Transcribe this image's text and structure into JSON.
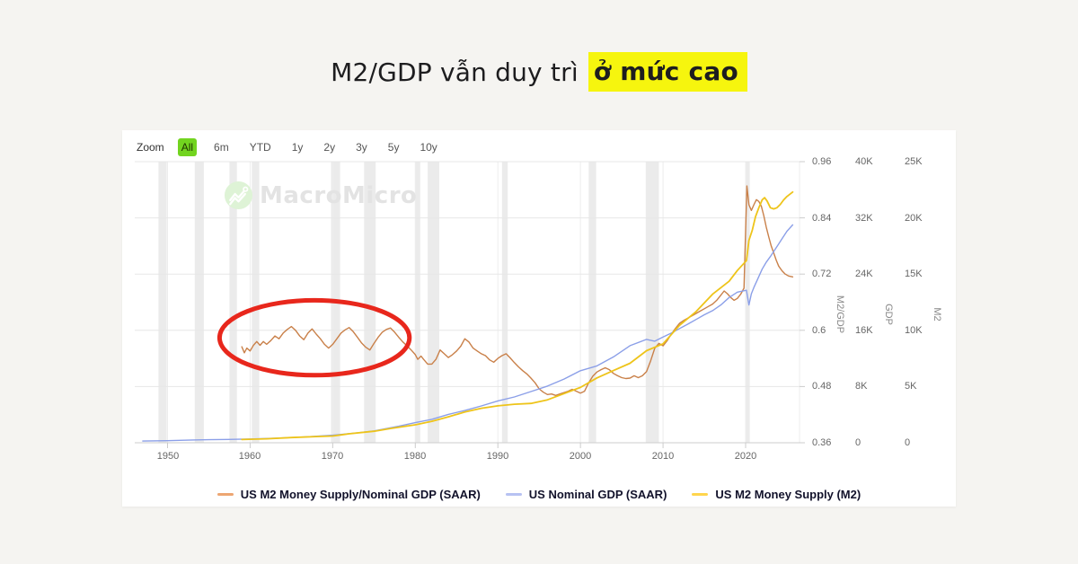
{
  "page": {
    "background": "#f5f4f1"
  },
  "title": {
    "prefix": "M2/GDP vẫn duy trì ",
    "highlight": "ở mức cao",
    "highlight_bg": "#f6f50e"
  },
  "toolbar": {
    "label": "Zoom",
    "active_bg": "#72d41f",
    "buttons": [
      {
        "label": "All",
        "active": true
      },
      {
        "label": "6m",
        "active": false
      },
      {
        "label": "YTD",
        "active": false
      },
      {
        "label": "1y",
        "active": false
      },
      {
        "label": "2y",
        "active": false
      },
      {
        "label": "3y",
        "active": false
      },
      {
        "label": "5y",
        "active": false
      },
      {
        "label": "10y",
        "active": false
      }
    ]
  },
  "watermark": {
    "text": "MacroMicro"
  },
  "chart_data": {
    "type": "line",
    "x_ticks": [
      1950,
      1960,
      1970,
      1980,
      1990,
      2000,
      2010,
      2020
    ],
    "x_range": [
      1946.9,
      2025.9
    ],
    "grid": true,
    "legend_position": "bottom",
    "yaxes": [
      {
        "title": "M2/GDP",
        "min": 0.36,
        "max": 0.96,
        "tick_values": [
          0.36,
          0.48,
          0.6,
          0.72,
          0.84,
          0.96
        ],
        "tick_labels": [
          "0.36",
          "0.48",
          "0.6",
          "0.72",
          "0.84",
          "0.96"
        ]
      },
      {
        "title": "GDP",
        "min": 0,
        "max": 40,
        "tick_values": [
          0,
          8,
          16,
          24,
          32,
          40
        ],
        "tick_labels": [
          "0",
          "8K",
          "16K",
          "24K",
          "32K",
          "40K"
        ]
      },
      {
        "title": "M2",
        "min": 0,
        "max": 25,
        "tick_values": [
          0,
          5,
          10,
          15,
          20,
          25
        ],
        "tick_labels": [
          "0",
          "5K",
          "10K",
          "15K",
          "20K",
          "25K"
        ]
      }
    ],
    "recession_bands": [
      [
        1948.9,
        1949.9
      ],
      [
        1953.3,
        1954.4
      ],
      [
        1957.5,
        1958.4
      ],
      [
        1960.2,
        1961.1
      ],
      [
        1969.8,
        1970.9
      ],
      [
        1973.8,
        1975.2
      ],
      [
        1980.0,
        1980.6
      ],
      [
        1981.5,
        1982.9
      ],
      [
        1990.5,
        1991.2
      ],
      [
        2001.0,
        2001.9
      ],
      [
        2007.9,
        2009.5
      ],
      [
        2020.0,
        2020.5
      ]
    ],
    "series": [
      {
        "name": "US M2 Money Supply/Nominal GDP (SAAR)",
        "color": "#c98049",
        "legend_color": "#eda672",
        "axis": 0,
        "width": 1.4,
        "data": [
          [
            1959,
            0.565
          ],
          [
            1959.3,
            0.552
          ],
          [
            1959.6,
            0.562
          ],
          [
            1960,
            0.556
          ],
          [
            1960.4,
            0.568
          ],
          [
            1960.8,
            0.576
          ],
          [
            1961.2,
            0.568
          ],
          [
            1961.6,
            0.576
          ],
          [
            1962,
            0.57
          ],
          [
            1962.5,
            0.578
          ],
          [
            1963,
            0.588
          ],
          [
            1963.5,
            0.582
          ],
          [
            1964,
            0.594
          ],
          [
            1964.5,
            0.602
          ],
          [
            1965,
            0.608
          ],
          [
            1965.5,
            0.6
          ],
          [
            1966,
            0.588
          ],
          [
            1966.5,
            0.58
          ],
          [
            1967,
            0.594
          ],
          [
            1967.5,
            0.603
          ],
          [
            1968,
            0.592
          ],
          [
            1968.5,
            0.582
          ],
          [
            1969,
            0.57
          ],
          [
            1969.5,
            0.562
          ],
          [
            1970,
            0.57
          ],
          [
            1970.5,
            0.582
          ],
          [
            1971,
            0.594
          ],
          [
            1971.5,
            0.601
          ],
          [
            1972,
            0.606
          ],
          [
            1972.5,
            0.597
          ],
          [
            1973,
            0.585
          ],
          [
            1973.5,
            0.573
          ],
          [
            1974,
            0.564
          ],
          [
            1974.5,
            0.558
          ],
          [
            1975,
            0.572
          ],
          [
            1975.5,
            0.585
          ],
          [
            1976,
            0.596
          ],
          [
            1976.5,
            0.602
          ],
          [
            1977,
            0.605
          ],
          [
            1977.5,
            0.596
          ],
          [
            1978,
            0.585
          ],
          [
            1978.5,
            0.575
          ],
          [
            1979,
            0.567
          ],
          [
            1979.5,
            0.558
          ],
          [
            1980,
            0.548
          ],
          [
            1980.3,
            0.538
          ],
          [
            1980.7,
            0.545
          ],
          [
            1981,
            0.538
          ],
          [
            1981.5,
            0.528
          ],
          [
            1982,
            0.528
          ],
          [
            1982.5,
            0.538
          ],
          [
            1983,
            0.558
          ],
          [
            1983.5,
            0.55
          ],
          [
            1984,
            0.542
          ],
          [
            1984.5,
            0.548
          ],
          [
            1985,
            0.556
          ],
          [
            1985.5,
            0.566
          ],
          [
            1986,
            0.582
          ],
          [
            1986.5,
            0.575
          ],
          [
            1987,
            0.562
          ],
          [
            1987.5,
            0.556
          ],
          [
            1988,
            0.55
          ],
          [
            1988.5,
            0.546
          ],
          [
            1989,
            0.537
          ],
          [
            1989.5,
            0.532
          ],
          [
            1990,
            0.54
          ],
          [
            1990.5,
            0.546
          ],
          [
            1991,
            0.55
          ],
          [
            1991.5,
            0.541
          ],
          [
            1992,
            0.531
          ],
          [
            1992.5,
            0.522
          ],
          [
            1993,
            0.514
          ],
          [
            1993.5,
            0.507
          ],
          [
            1994,
            0.498
          ],
          [
            1994.5,
            0.488
          ],
          [
            1995,
            0.475
          ],
          [
            1995.5,
            0.468
          ],
          [
            1996,
            0.463
          ],
          [
            1996.5,
            0.464
          ],
          [
            1997,
            0.461
          ],
          [
            1997.5,
            0.464
          ],
          [
            1998,
            0.467
          ],
          [
            1998.5,
            0.47
          ],
          [
            1999,
            0.474
          ],
          [
            1999.5,
            0.47
          ],
          [
            2000,
            0.466
          ],
          [
            2000.5,
            0.47
          ],
          [
            2001,
            0.488
          ],
          [
            2001.5,
            0.502
          ],
          [
            2002,
            0.511
          ],
          [
            2002.5,
            0.516
          ],
          [
            2003,
            0.52
          ],
          [
            2003.5,
            0.516
          ],
          [
            2004,
            0.508
          ],
          [
            2004.5,
            0.503
          ],
          [
            2005,
            0.499
          ],
          [
            2005.5,
            0.497
          ],
          [
            2006,
            0.498
          ],
          [
            2006.5,
            0.503
          ],
          [
            2007,
            0.499
          ],
          [
            2007.5,
            0.503
          ],
          [
            2008,
            0.512
          ],
          [
            2008.5,
            0.535
          ],
          [
            2009,
            0.562
          ],
          [
            2009.5,
            0.572
          ],
          [
            2010,
            0.567
          ],
          [
            2010.5,
            0.578
          ],
          [
            2011,
            0.592
          ],
          [
            2011.5,
            0.604
          ],
          [
            2012,
            0.615
          ],
          [
            2012.5,
            0.621
          ],
          [
            2013,
            0.626
          ],
          [
            2013.5,
            0.631
          ],
          [
            2014,
            0.636
          ],
          [
            2014.5,
            0.641
          ],
          [
            2015,
            0.646
          ],
          [
            2015.5,
            0.651
          ],
          [
            2016,
            0.656
          ],
          [
            2016.5,
            0.664
          ],
          [
            2017,
            0.675
          ],
          [
            2017.4,
            0.684
          ],
          [
            2017.8,
            0.678
          ],
          [
            2018.2,
            0.67
          ],
          [
            2018.6,
            0.664
          ],
          [
            2019,
            0.668
          ],
          [
            2019.4,
            0.677
          ],
          [
            2019.8,
            0.69
          ],
          [
            2020.15,
            0.908
          ],
          [
            2020.4,
            0.868
          ],
          [
            2020.7,
            0.856
          ],
          [
            2021,
            0.868
          ],
          [
            2021.3,
            0.879
          ],
          [
            2021.6,
            0.875
          ],
          [
            2021.9,
            0.865
          ],
          [
            2022.2,
            0.845
          ],
          [
            2022.5,
            0.82
          ],
          [
            2022.8,
            0.799
          ],
          [
            2023.1,
            0.78
          ],
          [
            2023.4,
            0.765
          ],
          [
            2023.7,
            0.75
          ],
          [
            2024,
            0.737
          ],
          [
            2024.4,
            0.727
          ],
          [
            2024.8,
            0.72
          ],
          [
            2025.2,
            0.716
          ],
          [
            2025.7,
            0.714
          ]
        ]
      },
      {
        "name": "US Nominal GDP (SAAR)",
        "color": "#8b9fe8",
        "legend_color": "#b7c2f2",
        "axis": 1,
        "width": 1.4,
        "data": [
          [
            1947,
            0.24
          ],
          [
            1950,
            0.3
          ],
          [
            1953,
            0.39
          ],
          [
            1955,
            0.43
          ],
          [
            1958,
            0.48
          ],
          [
            1960,
            0.54
          ],
          [
            1963,
            0.64
          ],
          [
            1965,
            0.74
          ],
          [
            1967,
            0.86
          ],
          [
            1970,
            1.07
          ],
          [
            1973,
            1.42
          ],
          [
            1975,
            1.69
          ],
          [
            1978,
            2.35
          ],
          [
            1980,
            2.86
          ],
          [
            1982,
            3.34
          ],
          [
            1984,
            4.04
          ],
          [
            1986,
            4.59
          ],
          [
            1988,
            5.24
          ],
          [
            1990,
            5.96
          ],
          [
            1992,
            6.52
          ],
          [
            1994,
            7.29
          ],
          [
            1996,
            8.07
          ],
          [
            1998,
            9.06
          ],
          [
            2000,
            10.25
          ],
          [
            2002,
            10.94
          ],
          [
            2004,
            12.22
          ],
          [
            2006,
            13.81
          ],
          [
            2008,
            14.71
          ],
          [
            2009,
            14.45
          ],
          [
            2010,
            15.05
          ],
          [
            2011,
            15.6
          ],
          [
            2012,
            16.25
          ],
          [
            2013,
            16.88
          ],
          [
            2014,
            17.55
          ],
          [
            2015,
            18.21
          ],
          [
            2016,
            18.8
          ],
          [
            2017,
            19.61
          ],
          [
            2018,
            20.66
          ],
          [
            2019,
            21.43
          ],
          [
            2020.1,
            21.7
          ],
          [
            2020.4,
            19.6
          ],
          [
            2020.7,
            21.2
          ],
          [
            2021,
            22.1
          ],
          [
            2021.5,
            23.4
          ],
          [
            2022,
            24.7
          ],
          [
            2022.5,
            25.7
          ],
          [
            2023,
            26.5
          ],
          [
            2023.5,
            27.4
          ],
          [
            2024,
            28.3
          ],
          [
            2024.5,
            29.2
          ],
          [
            2025,
            30.1
          ],
          [
            2025.7,
            31.0
          ]
        ]
      },
      {
        "name": "US M2 Money Supply (M2)",
        "color": "#eec41a",
        "legend_color": "#ffd54d",
        "axis": 2,
        "width": 1.8,
        "data": [
          [
            1959,
            0.29
          ],
          [
            1962,
            0.35
          ],
          [
            1965,
            0.46
          ],
          [
            1968,
            0.55
          ],
          [
            1970,
            0.6
          ],
          [
            1972,
            0.8
          ],
          [
            1975,
            1.02
          ],
          [
            1977,
            1.27
          ],
          [
            1980,
            1.6
          ],
          [
            1982,
            1.91
          ],
          [
            1984,
            2.31
          ],
          [
            1986,
            2.73
          ],
          [
            1988,
            3.07
          ],
          [
            1990,
            3.28
          ],
          [
            1992,
            3.43
          ],
          [
            1994,
            3.5
          ],
          [
            1996,
            3.82
          ],
          [
            1998,
            4.37
          ],
          [
            2000,
            4.92
          ],
          [
            2002,
            5.77
          ],
          [
            2004,
            6.42
          ],
          [
            2006,
            7.07
          ],
          [
            2008,
            8.19
          ],
          [
            2010,
            8.8
          ],
          [
            2012,
            10.45
          ],
          [
            2014,
            11.67
          ],
          [
            2016,
            13.21
          ],
          [
            2018,
            14.36
          ],
          [
            2019,
            15.32
          ],
          [
            2020.1,
            16.2
          ],
          [
            2020.4,
            18.0
          ],
          [
            2020.8,
            18.9
          ],
          [
            2021.2,
            20.1
          ],
          [
            2021.6,
            20.9
          ],
          [
            2022,
            21.6
          ],
          [
            2022.3,
            21.8
          ],
          [
            2022.6,
            21.5
          ],
          [
            2023,
            20.9
          ],
          [
            2023.4,
            20.8
          ],
          [
            2023.8,
            20.9
          ],
          [
            2024.2,
            21.2
          ],
          [
            2024.6,
            21.6
          ],
          [
            2025,
            21.9
          ],
          [
            2025.7,
            22.3
          ]
        ]
      }
    ],
    "annotation": {
      "shape": "ellipse",
      "cx_year": 1967.8,
      "cy_value": 0.584,
      "rx_years": 11.5,
      "ry_value": 0.08,
      "color": "#e8271c",
      "stroke_width": 5
    }
  }
}
